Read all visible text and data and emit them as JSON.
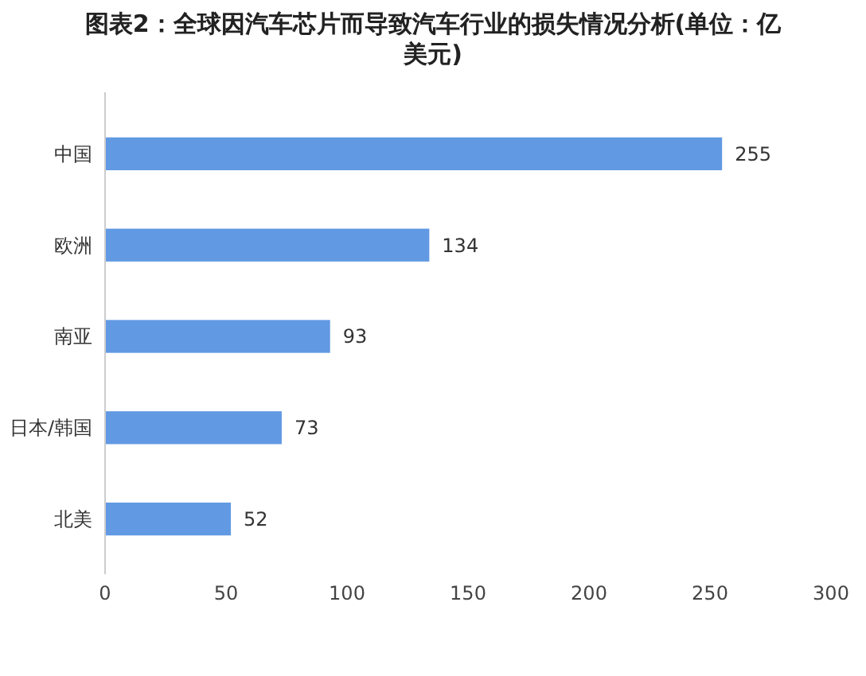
{
  "chart_data": {
    "type": "bar",
    "orientation": "horizontal",
    "title": "图表2：全球因汽车芯片而导致汽车行业的损失情况分析(单位：亿美元)",
    "categories": [
      "中国",
      "欧洲",
      "南亚",
      "日本/韩国",
      "北美"
    ],
    "values": [
      255,
      134,
      93,
      73,
      52
    ],
    "color": "#6199e3",
    "xlim": [
      0,
      300
    ],
    "xticks": [
      0,
      50,
      100,
      150,
      200,
      250,
      300
    ],
    "grid": false,
    "data_labels": true
  }
}
